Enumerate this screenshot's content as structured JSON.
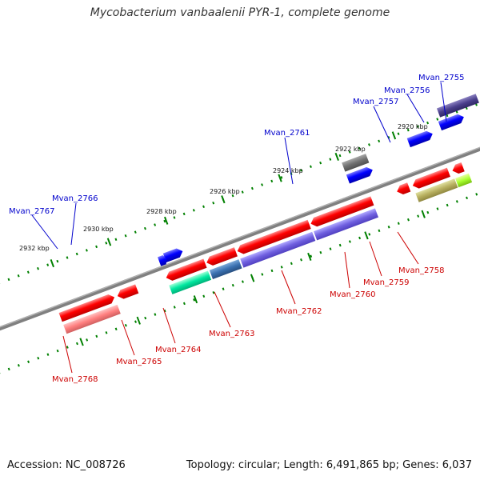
{
  "title": "Mycobacterium vanbaalenii PYR-1, complete genome",
  "accession": "Accession: NC_008726",
  "topology": "Topology: circular; Length: 6,491,865 bp; Genes: 6,037",
  "kbp_labels": [
    "2920 kbp",
    "2922 kbp",
    "2924 kbp",
    "2926 kbp",
    "2928 kbp",
    "2930 kbp",
    "2932 kbp"
  ],
  "top_genes": [
    "Mvan_2755",
    "Mvan_2756",
    "Mvan_2757",
    "Mvan_2761",
    "Mvan_2766",
    "Mvan_2767"
  ],
  "bottom_genes": [
    "Mvan_2758",
    "Mvan_2759",
    "Mvan_2760",
    "Mvan_2762",
    "Mvan_2763",
    "Mvan_2764",
    "Mvan_2765",
    "Mvan_2768"
  ],
  "colors": {
    "forward_label": "#0000cc",
    "reverse_label": "#cc0000",
    "forward_gene": "#0000ff",
    "reverse_gene": "#ff0000",
    "backbone": "#808080",
    "tick": "#008000"
  }
}
